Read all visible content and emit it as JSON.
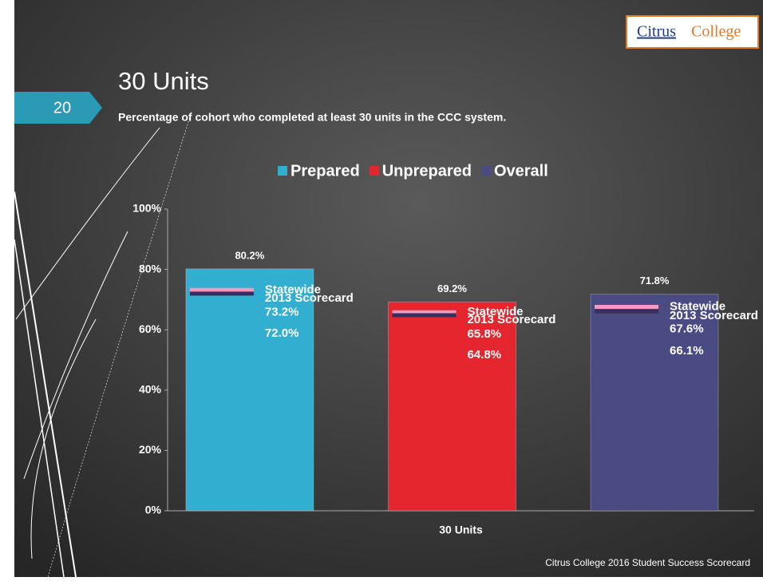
{
  "slide": {
    "number": 20,
    "title": "30 Units",
    "subtitle": "Percentage of cohort who completed at least 30 units in the CCC system.",
    "logo": [
      "Citrus",
      "College"
    ],
    "footer": "Citrus College 2016 Student Success Scorecard"
  },
  "chart_data": {
    "type": "bar",
    "categories": [
      "30 Units"
    ],
    "series": [
      {
        "name": "Prepared",
        "color": "#31aed0",
        "values": [
          80.2
        ],
        "value_labels": [
          "80.2%"
        ]
      },
      {
        "name": "Unprepared",
        "color": "#e5262e",
        "values": [
          69.2
        ],
        "value_labels": [
          "69.2%"
        ]
      },
      {
        "name": "Overall",
        "color": "#4b4b84",
        "values": [
          71.8
        ],
        "value_labels": [
          "71.8%"
        ]
      }
    ],
    "benchmarks": [
      {
        "name": "Statewide",
        "color": "#f49ac1",
        "values": [
          73.2,
          65.8,
          67.6
        ],
        "value_labels": [
          "73.2%",
          "65.8%",
          "67.6%"
        ]
      },
      {
        "name": "2013 Scorecard",
        "color": "#3a2d5c",
        "values": [
          72.0,
          64.8,
          66.1
        ],
        "value_labels": [
          "72.0%",
          "64.8%",
          "66.1%"
        ]
      }
    ],
    "ylim": [
      0,
      100
    ],
    "yticks": [
      {
        "value": 0,
        "label": "0%"
      },
      {
        "value": 20,
        "label": "20%"
      },
      {
        "value": 40,
        "label": "40%"
      },
      {
        "value": 60,
        "label": "60%"
      },
      {
        "value": 80,
        "label": "80%"
      },
      {
        "value": 100,
        "label": "100%"
      }
    ],
    "legend": "top"
  }
}
